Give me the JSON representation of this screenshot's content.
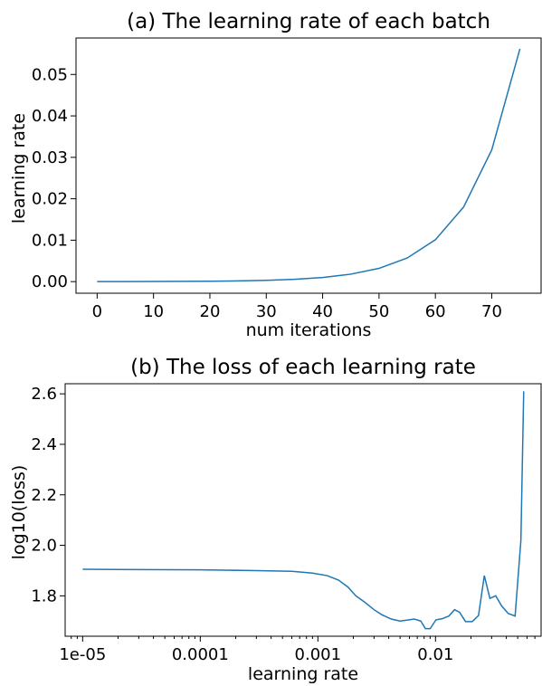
{
  "chart_data": [
    {
      "type": "line",
      "title": "(a) The learning rate of each batch",
      "xlabel": "num iterations",
      "ylabel": "learning rate",
      "xlim": [
        -3.75,
        78.75
      ],
      "ylim": [
        -0.0028,
        0.0588
      ],
      "xticks": [
        0,
        10,
        20,
        30,
        40,
        50,
        60,
        70
      ],
      "xtick_labels": [
        "0",
        "10",
        "20",
        "30",
        "40",
        "50",
        "60",
        "70"
      ],
      "yticks": [
        0,
        0.01,
        0.02,
        0.03,
        0.04,
        0.05
      ],
      "ytick_labels": [
        "0.00",
        "0.01",
        "0.02",
        "0.03",
        "0.04",
        "0.05"
      ],
      "grid": false,
      "series": [
        {
          "color": "#1f77b4",
          "x": [
            0,
            5,
            10,
            15,
            20,
            25,
            30,
            35,
            40,
            45,
            50,
            55,
            60,
            65,
            70,
            75
          ],
          "y": [
            1e-05,
            1.8e-05,
            3.2e-05,
            5.7e-05,
            0.0001,
            0.00018,
            0.00032,
            0.00057,
            0.001,
            0.0018,
            0.0032,
            0.0057,
            0.0101,
            0.018,
            0.0318,
            0.0562
          ]
        }
      ]
    },
    {
      "type": "line",
      "title": "(b) The loss of each learning rate",
      "xlabel": "learning rate",
      "ylabel": "log10(loss)",
      "xscale": "log",
      "xlim": [
        7.1e-06,
        0.079
      ],
      "ylim": [
        1.64,
        2.64
      ],
      "xticks": [
        1e-05,
        0.0001,
        0.001,
        0.01
      ],
      "xtick_labels": [
        "1e-05",
        "0.0001",
        "0.001",
        "0.01"
      ],
      "yticks": [
        1.8,
        2.0,
        2.2,
        2.4,
        2.6
      ],
      "ytick_labels": [
        "1.8",
        "2.0",
        "2.2",
        "2.4",
        "2.6"
      ],
      "grid": false,
      "series": [
        {
          "color": "#1f77b4",
          "x": [
            1e-05,
            3e-05,
            0.0001,
            0.0003,
            0.0006,
            0.0009,
            0.0012,
            0.0015,
            0.0018,
            0.0021,
            0.0025,
            0.003,
            0.0035,
            0.0042,
            0.005,
            0.0058,
            0.0066,
            0.0075,
            0.0082,
            0.009,
            0.0101,
            0.0115,
            0.013,
            0.0145,
            0.016,
            0.018,
            0.0205,
            0.0232,
            0.026,
            0.029,
            0.0325,
            0.0365,
            0.0415,
            0.0475,
            0.0532,
            0.0562
          ],
          "y": [
            1.905,
            1.904,
            1.903,
            1.9,
            1.897,
            1.89,
            1.88,
            1.862,
            1.835,
            1.8,
            1.775,
            1.745,
            1.725,
            1.708,
            1.7,
            1.704,
            1.708,
            1.7,
            1.67,
            1.67,
            1.705,
            1.71,
            1.72,
            1.745,
            1.735,
            1.698,
            1.698,
            1.722,
            1.88,
            1.79,
            1.8,
            1.76,
            1.73,
            1.72,
            2.02,
            2.61
          ]
        }
      ]
    }
  ]
}
